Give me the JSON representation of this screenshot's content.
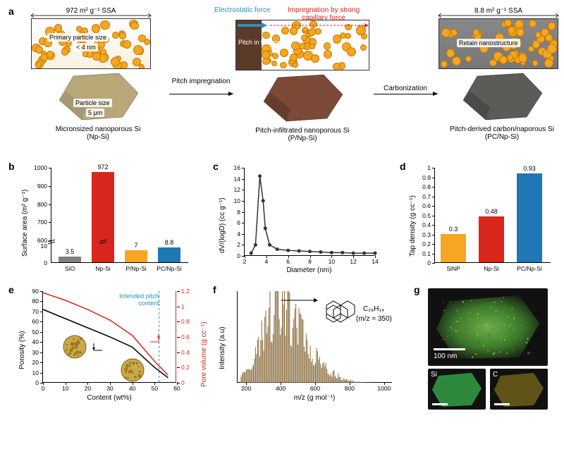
{
  "panel_a": {
    "stages": [
      {
        "ssa_label": "972 m² g⁻¹ SSA",
        "box_label1": "Primary particle size",
        "box_label2": "< 4 nm",
        "particle_size_label": "Particle size",
        "particle_size_val": "5 µm",
        "name": "Micronsized nanoporous Si",
        "abbr": "(Np-Si)",
        "poly_fill": "#b8a878",
        "poly_fill2": "#9c9270"
      },
      {
        "top_blue": "Electrostatic force",
        "top_red": "Impregnation by strong capillary force",
        "pitch_label": "Pitch in toluene",
        "name": "Pitch-infiltrated nanoporous Si",
        "abbr": "(P/Np-Si)",
        "poly_fill": "#7d4a38",
        "poly_fill2": "#5f3628"
      },
      {
        "ssa_label": "8.8 m² g⁻¹ SSA",
        "box_label": "Retain nanostructure",
        "name": "Pitch-derived carbon/naporous Si",
        "abbr": "(PC/Np-Si)",
        "poly_fill": "#5a5c58",
        "poly_fill2": "#434542"
      }
    ],
    "arrow1": "Pitch impregnation",
    "arrow2": "Carbonization"
  },
  "panel_b": {
    "ylabel": "Surface area (m² g⁻¹)",
    "yticks_upper": [
      600,
      700,
      800,
      900,
      1000
    ],
    "ytick_lower_max": 10,
    "categories": [
      "SiO",
      "Np-Si",
      "P/Np-Si",
      "PC/Np-Si"
    ],
    "values": [
      3.5,
      972,
      7.0,
      8.8
    ],
    "colors": [
      "#808080",
      "#d9261c",
      "#f5a623",
      "#1f77b4"
    ]
  },
  "panel_c": {
    "ylabel": "dV/(logD) (cc g⁻¹)",
    "xlabel": "Diameter (nm)",
    "yticks": [
      0,
      2,
      4,
      6,
      8,
      10,
      12,
      14,
      16
    ],
    "xticks": [
      2,
      4,
      6,
      8,
      10,
      12,
      14
    ],
    "x": [
      2.6,
      3.0,
      3.4,
      3.7,
      3.9,
      4.3,
      5.0,
      6.0,
      7.0,
      8.0,
      9.0,
      10.0,
      11.0,
      12.0,
      13.0,
      14.0
    ],
    "y": [
      0.5,
      2.0,
      14.5,
      10.0,
      5.0,
      2.0,
      1.2,
      1.0,
      0.9,
      0.8,
      0.7,
      0.6,
      0.6,
      0.5,
      0.5,
      0.5
    ],
    "line_color": "#333"
  },
  "panel_d": {
    "ylabel": "Tap density (g cc⁻¹)",
    "yticks": [
      0,
      0.1,
      0.2,
      0.3,
      0.4,
      0.5,
      0.6,
      0.7,
      0.8,
      0.9,
      1.0
    ],
    "categories": [
      "SiNP",
      "Np-Si",
      "PC/Np-Si"
    ],
    "values": [
      0.3,
      0.48,
      0.93
    ],
    "colors": [
      "#f5a623",
      "#d9261c",
      "#1f77b4"
    ]
  },
  "panel_e": {
    "ylabel_left": "Porosity (%)",
    "ylabel_right": "Pore volume (g cc⁻¹)",
    "xlabel": "Content (wt%)",
    "yticks_left": [
      0,
      10,
      20,
      30,
      40,
      50,
      60,
      70,
      80,
      90
    ],
    "yticks_right": [
      0,
      0.2,
      0.4,
      0.6,
      0.8,
      1.0,
      1.2
    ],
    "xticks": [
      0,
      10,
      20,
      30,
      40,
      50,
      60
    ],
    "annot": "Intended pitch content",
    "annot_color": "#2a8fbd",
    "vline_x": 52,
    "color_left": "#000",
    "color_right": "#d9261c",
    "left_curve": {
      "x": [
        0,
        10,
        20,
        30,
        40,
        50,
        56
      ],
      "y": [
        72,
        63,
        54,
        45,
        35,
        15,
        5
      ]
    },
    "right_curve": {
      "x": [
        0,
        10,
        20,
        30,
        40,
        50,
        56
      ],
      "y": [
        1.18,
        1.08,
        0.96,
        0.82,
        0.62,
        0.28,
        0.1
      ]
    }
  },
  "panel_f": {
    "ylabel": "Intensity (a.u)",
    "xlabel": "m/z (g mol⁻¹)",
    "xticks": [
      200,
      400,
      600,
      800,
      1000
    ],
    "formula": "C₂₈H₁₄",
    "mz_label": "(m/z = 350)",
    "bar_color": "#8a6b3d"
  },
  "panel_g": {
    "scale_text": "100 nm",
    "sub1_label": "Si",
    "sub2_label": "C"
  }
}
